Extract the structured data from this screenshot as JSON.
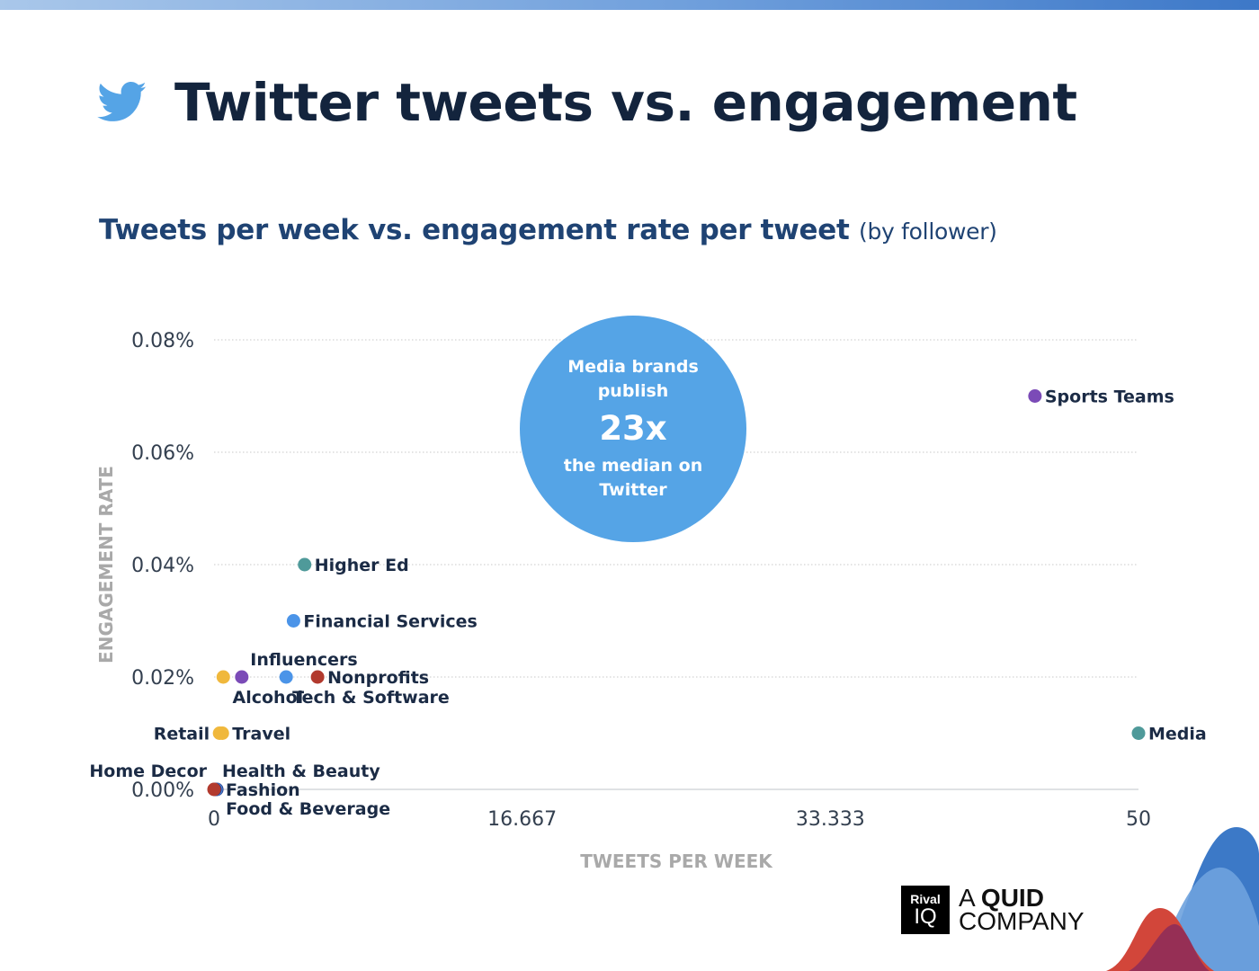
{
  "header": {
    "title": "Twitter tweets vs. engagement",
    "icon": "twitter-bird-icon",
    "icon_color": "#55a4e6"
  },
  "subtitle": {
    "main": "Tweets per week vs. engagement rate per tweet",
    "note": "(by follower)"
  },
  "callout": {
    "line1": "Media brands",
    "line2": "publish",
    "big": "23x",
    "line3": "the median on",
    "line4": "Twitter"
  },
  "branding": {
    "box_top": "Rival",
    "box_bottom": "IQ",
    "text_prefix": "A",
    "text_bold": "QUID",
    "text_second": "COMPANY"
  },
  "chart_data": {
    "type": "scatter",
    "title": "Tweets per week vs. engagement rate per tweet",
    "xlabel": "TWEETS PER WEEK",
    "ylabel": "ENGAGEMENT RATE",
    "xlim": [
      0,
      50
    ],
    "ylim": [
      0,
      0.08
    ],
    "xticks": [
      0,
      16.667,
      33.333,
      50
    ],
    "xtick_labels": [
      "0",
      "16.667",
      "33.333",
      "50"
    ],
    "yticks": [
      0,
      0.02,
      0.04,
      0.06,
      0.08
    ],
    "ytick_labels": [
      "0.00%",
      "0.02%",
      "0.04%",
      "0.06%",
      "0.08%"
    ],
    "grid": true,
    "points": [
      {
        "label": "Sports Teams",
        "x": 44.4,
        "y": 0.07,
        "color": "#7b4bb7",
        "label_side": "right"
      },
      {
        "label": "Higher Ed",
        "x": 4.9,
        "y": 0.04,
        "color": "#4f9a9a",
        "label_side": "right"
      },
      {
        "label": "Financial Services",
        "x": 4.3,
        "y": 0.03,
        "color": "#4b94e8",
        "label_side": "right"
      },
      {
        "label": "Influencers",
        "x": 0.5,
        "y": 0.02,
        "color": "#f0b83c",
        "label_side": "above-right"
      },
      {
        "label": "Alcohol",
        "x": 1.5,
        "y": 0.02,
        "color": "#7b4bb7",
        "label_side": "below"
      },
      {
        "label": "Tech & Software",
        "x": 3.9,
        "y": 0.02,
        "color": "#4b94e8",
        "label_side": "below"
      },
      {
        "label": "Nonprofits",
        "x": 5.6,
        "y": 0.02,
        "color": "#b23a2e",
        "label_side": "right"
      },
      {
        "label": "Retail",
        "x": 0.3,
        "y": 0.01,
        "color": "#f0b83c",
        "label_side": "left"
      },
      {
        "label": "Travel",
        "x": 0.45,
        "y": 0.01,
        "color": "#f0b83c",
        "label_side": "right"
      },
      {
        "label": "Media",
        "x": 50,
        "y": 0.01,
        "color": "#4f9a9a",
        "label_side": "right"
      },
      {
        "label": "Home Decor",
        "x": 0,
        "y": 0,
        "color": "#b23a2e",
        "label_side": "above-left"
      },
      {
        "label": "Health & Beauty",
        "x": 0.05,
        "y": 0,
        "color": "#2e3e86",
        "label_side": "above-right"
      },
      {
        "label": "Fashion",
        "x": 0.1,
        "y": 0,
        "color": "#4b94e8",
        "label_side": "right"
      },
      {
        "label": "Food & Beverage",
        "x": 0.15,
        "y": 0,
        "color": "#2e3e86",
        "label_side": "below-right"
      }
    ]
  }
}
